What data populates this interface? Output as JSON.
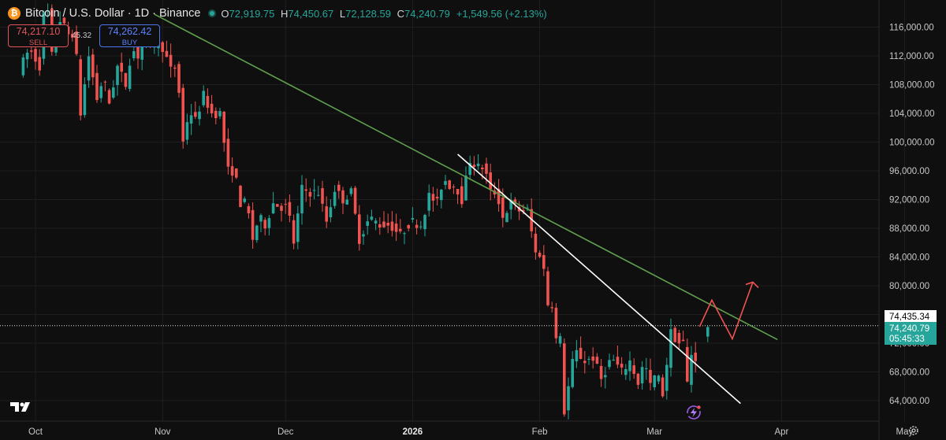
{
  "header": {
    "symbol_title": "Bitcoin / U.S. Dollar · 1D · Binance",
    "open_label": "O",
    "open": "72,919.75",
    "high_label": "H",
    "high": "74,450.67",
    "low_label": "L",
    "low": "72,128.59",
    "close_label": "C",
    "close": "74,240.79",
    "change": "+1,549.56 (+2.13%)"
  },
  "trade": {
    "sell_price": "74,217.10",
    "sell_label": "SELL",
    "spread": "45.32",
    "buy_price": "74,262.42",
    "buy_label": "BUY"
  },
  "price_labels": {
    "crosshair_price": "74,435.34",
    "last_price": "74,240.79",
    "countdown": "05:45:33"
  },
  "colors": {
    "background": "#0f0f0f",
    "up": "#26a69a",
    "down": "#ef5350",
    "trendline_long": "#5fa04e",
    "trendline_short": "#ffffff",
    "projection": "#ef5350"
  },
  "icons": [
    "bitcoin-icon",
    "market-open-dot-icon",
    "tradingview-logo-icon",
    "lightning-icon",
    "settings-gear-icon"
  ],
  "chart_data": {
    "type": "candlestick",
    "title": "Bitcoin / U.S. Dollar · 1D · Binance",
    "x_axis": {
      "type": "date",
      "range": [
        "2025-09-26",
        "2026-05-05"
      ],
      "ticks": [
        {
          "date": "2025-10-01",
          "label": "Oct"
        },
        {
          "date": "2025-11-01",
          "label": "Nov"
        },
        {
          "date": "2025-12-01",
          "label": "Dec"
        },
        {
          "date": "2026-01-01",
          "label": "2026"
        },
        {
          "date": "2026-02-01",
          "label": "Feb"
        },
        {
          "date": "2026-03-01",
          "label": "Mar"
        },
        {
          "date": "2026-04-01",
          "label": "Apr"
        },
        {
          "date": "2026-05-01",
          "label": "May"
        }
      ]
    },
    "y_axis": {
      "range": [
        61500,
        118000
      ],
      "position": "right",
      "ticks": [
        64000,
        68000,
        72000,
        76000,
        80000,
        84000,
        88000,
        92000,
        96000,
        100000,
        104000,
        108000,
        112000,
        116000
      ],
      "tick_labels": [
        "64,000.00",
        "68,000.00",
        "72,000.00",
        "76,000.00",
        "80,000.00",
        "84,000.00",
        "88,000.00",
        "92,000.00",
        "96,000.00",
        "100,000.00",
        "104,000.00",
        "108,000.00",
        "112,000.00",
        "116,000.00"
      ]
    },
    "grid": true,
    "horizontal_line": 74435.34,
    "trendlines": [
      {
        "name": "long-term-resistance",
        "color": "#5fa04e",
        "points": [
          {
            "date": "2025-10-30",
            "price": 117800
          },
          {
            "date": "2026-03-31",
            "price": 72500
          }
        ]
      },
      {
        "name": "short-term-resistance",
        "color": "#ffffff",
        "points": [
          {
            "date": "2026-01-12",
            "price": 98300
          },
          {
            "date": "2026-03-22",
            "price": 63600
          }
        ]
      }
    ],
    "projection": {
      "color": "#ef5350",
      "points": [
        {
          "date": "2026-03-12",
          "price": 74300
        },
        {
          "date": "2026-03-15",
          "price": 78000
        },
        {
          "date": "2026-03-20",
          "price": 72600
        },
        {
          "date": "2026-03-25",
          "price": 80500
        }
      ]
    },
    "segments": [
      [
        "2025-09-28",
        110000,
        113000,
        110600
      ],
      [
        "2025-10-03",
        111000,
        121000,
        112000
      ],
      [
        "2025-10-06",
        112000,
        117000,
        115000
      ],
      [
        "2025-10-10",
        114500,
        115500,
        104000
      ],
      [
        "2025-10-13",
        104000,
        112000,
        106000
      ],
      [
        "2025-10-17",
        106000,
        109000,
        105500
      ],
      [
        "2025-10-20",
        105500,
        110500,
        108000
      ],
      [
        "2025-10-24",
        108000,
        113000,
        112000
      ],
      [
        "2025-10-27",
        112000,
        115500,
        113500
      ],
      [
        "2025-10-30",
        113500,
        114000,
        110000
      ],
      [
        "2025-11-04",
        110000,
        110500,
        100000
      ],
      [
        "2025-11-07",
        100000,
        104500,
        103000
      ],
      [
        "2025-11-10",
        103000,
        106500,
        104000
      ],
      [
        "2025-11-14",
        104000,
        104000,
        96000
      ],
      [
        "2025-11-18",
        96000,
        96000,
        91500
      ],
      [
        "2025-11-21",
        91500,
        91500,
        86500
      ],
      [
        "2025-11-24",
        86500,
        89500,
        88500
      ],
      [
        "2025-11-27",
        88500,
        91500,
        91000
      ],
      [
        "2025-12-01",
        91000,
        91000,
        86000
      ],
      [
        "2025-12-04",
        86000,
        93500,
        93000
      ],
      [
        "2025-12-08",
        93000,
        93000,
        89000
      ],
      [
        "2025-12-12",
        89000,
        93500,
        92000
      ],
      [
        "2025-12-16",
        92000,
        93000,
        86500
      ],
      [
        "2025-12-20",
        86500,
        89500,
        88500
      ],
      [
        "2025-12-25",
        88500,
        88500,
        87000
      ],
      [
        "2025-12-30",
        87000,
        89000,
        88500
      ],
      [
        "2026-01-04",
        88500,
        92500,
        91500
      ],
      [
        "2026-01-08",
        91500,
        95000,
        94000
      ],
      [
        "2026-01-11",
        94000,
        94000,
        92000
      ],
      [
        "2026-01-14",
        92000,
        97500,
        96500
      ],
      [
        "2026-01-18",
        96500,
        96500,
        93000
      ],
      [
        "2026-01-21",
        93000,
        93000,
        89500
      ],
      [
        "2026-01-24",
        89500,
        91500,
        90500
      ],
      [
        "2026-01-28",
        90500,
        90500,
        84500
      ],
      [
        "2026-02-01",
        84500,
        84500,
        77500
      ],
      [
        "2026-02-04",
        77500,
        77500,
        72500
      ],
      [
        "2026-02-06",
        72500,
        72500,
        62500
      ],
      [
        "2026-02-08",
        62500,
        71000,
        69500
      ],
      [
        "2026-02-13",
        69500,
        70000,
        67000
      ],
      [
        "2026-02-17",
        67000,
        70000,
        68000
      ],
      [
        "2026-02-22",
        68000,
        69500,
        66500
      ],
      [
        "2026-02-26",
        66500,
        69500,
        66000
      ],
      [
        "2026-03-01",
        66000,
        68000,
        65000
      ],
      [
        "2026-03-04",
        65000,
        73500,
        72000
      ],
      [
        "2026-03-08",
        72000,
        72000,
        66500
      ],
      [
        "2026-03-10",
        66500,
        70500,
        70000
      ],
      [
        "2026-03-12",
        70000,
        74500,
        74300
      ]
    ]
  }
}
